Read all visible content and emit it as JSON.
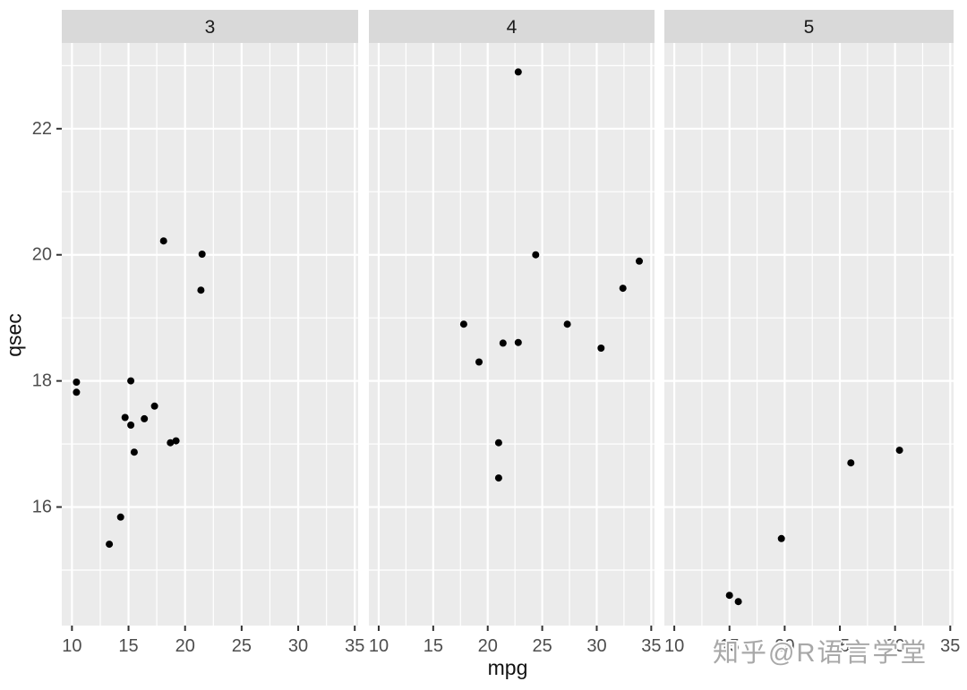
{
  "figure": {
    "x_axis_title": "mpg",
    "y_axis_title": "qsec",
    "watermark": "知乎@R语言学堂"
  },
  "colors": {
    "background": "#ffffff",
    "panel_background": "#ebebeb",
    "strip_background": "#d9d9d9",
    "grid_line": "#ffffff",
    "point": "#000000",
    "axis_text": "#4d4d4d",
    "strip_text": "#1a1a1a",
    "axis_title_text": "#111111",
    "tick_mark": "#333333",
    "watermark_text": "#a8a8a8"
  },
  "chart_data": {
    "type": "scatter",
    "title": "",
    "xlabel": "mpg",
    "ylabel": "qsec",
    "facet_labels": [
      "3",
      "4",
      "5"
    ],
    "x_ticks": [
      10,
      15,
      20,
      25,
      30,
      35
    ],
    "y_ticks": [
      16,
      18,
      20,
      22
    ],
    "x_minor_ticks": [
      12.5,
      17.5,
      22.5,
      27.5,
      32.5
    ],
    "y_minor_ticks": [
      15,
      17,
      19,
      21,
      23
    ],
    "xlim": [
      9.1,
      35.3
    ],
    "ylim": [
      14.12,
      23.36
    ],
    "grid": true,
    "legend": "none",
    "facets": [
      {
        "label": "3",
        "points": [
          {
            "mpg": 21.4,
            "qsec": 19.44
          },
          {
            "mpg": 18.7,
            "qsec": 17.02
          },
          {
            "mpg": 18.1,
            "qsec": 20.22
          },
          {
            "mpg": 14.3,
            "qsec": 15.84
          },
          {
            "mpg": 16.4,
            "qsec": 17.4
          },
          {
            "mpg": 17.3,
            "qsec": 17.6
          },
          {
            "mpg": 15.2,
            "qsec": 18.0
          },
          {
            "mpg": 10.4,
            "qsec": 17.98
          },
          {
            "mpg": 10.4,
            "qsec": 17.82
          },
          {
            "mpg": 14.7,
            "qsec": 17.42
          },
          {
            "mpg": 15.5,
            "qsec": 16.87
          },
          {
            "mpg": 15.2,
            "qsec": 17.3
          },
          {
            "mpg": 13.3,
            "qsec": 15.41
          },
          {
            "mpg": 19.2,
            "qsec": 17.05
          },
          {
            "mpg": 21.5,
            "qsec": 20.01
          }
        ]
      },
      {
        "label": "4",
        "points": [
          {
            "mpg": 21.0,
            "qsec": 16.46
          },
          {
            "mpg": 21.0,
            "qsec": 17.02
          },
          {
            "mpg": 22.8,
            "qsec": 18.61
          },
          {
            "mpg": 24.4,
            "qsec": 20.0
          },
          {
            "mpg": 22.8,
            "qsec": 22.9
          },
          {
            "mpg": 19.2,
            "qsec": 18.3
          },
          {
            "mpg": 17.8,
            "qsec": 18.9
          },
          {
            "mpg": 32.4,
            "qsec": 19.47
          },
          {
            "mpg": 30.4,
            "qsec": 18.52
          },
          {
            "mpg": 33.9,
            "qsec": 19.9
          },
          {
            "mpg": 27.3,
            "qsec": 18.9
          },
          {
            "mpg": 21.4,
            "qsec": 18.6
          }
        ]
      },
      {
        "label": "5",
        "points": [
          {
            "mpg": 26.0,
            "qsec": 16.7
          },
          {
            "mpg": 15.8,
            "qsec": 14.5
          },
          {
            "mpg": 19.7,
            "qsec": 15.5
          },
          {
            "mpg": 15.0,
            "qsec": 14.6
          },
          {
            "mpg": 30.4,
            "qsec": 16.9
          }
        ]
      }
    ]
  }
}
